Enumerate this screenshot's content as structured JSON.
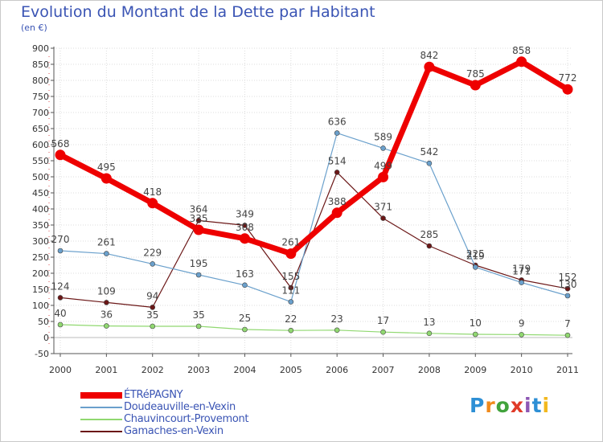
{
  "title": "Evolution du Montant de la Dette par Habitant",
  "subtitle": "(en €)",
  "logo": {
    "text": "Proxiti",
    "letter_colors": [
      "#2d8fd5",
      "#f08a1c",
      "#41a33c",
      "#e03a28",
      "#8d57b4",
      "#2d8fd5",
      "#f2b81e"
    ]
  },
  "chart_data": {
    "type": "line",
    "title": "Evolution du Montant de la Dette par Habitant",
    "subtitle": "(en €)",
    "x": [
      "2000",
      "2001",
      "2002",
      "2003",
      "2004",
      "2005",
      "2006",
      "2007",
      "2008",
      "2009",
      "2010",
      "2011"
    ],
    "ylim": [
      -50,
      900
    ],
    "yticks": [
      -50,
      0,
      50,
      100,
      150,
      200,
      250,
      300,
      350,
      400,
      450,
      500,
      550,
      600,
      650,
      700,
      750,
      800,
      850,
      900
    ],
    "grid": true,
    "legend_position": "bottom-left",
    "series": [
      {
        "name": "Gamaches-en-Vexin",
        "color": "#6b1717",
        "width": 1.2,
        "values": [
          124,
          109,
          94,
          364,
          349,
          155,
          514,
          371,
          285,
          225,
          179,
          152
        ]
      },
      {
        "name": "Chauvincourt-Provemont",
        "color": "#90d870",
        "width": 1.2,
        "values": [
          40,
          36,
          35,
          35,
          25,
          22,
          23,
          17,
          13,
          10,
          9,
          7
        ]
      },
      {
        "name": "Doudeauville-en-Vexin",
        "color": "#6aa0cc",
        "width": 1.2,
        "values": [
          270,
          261,
          229,
          195,
          163,
          111,
          636,
          589,
          542,
          219,
          171,
          130
        ]
      },
      {
        "name": "ÉTRéPAGNY",
        "color": "#ee0000",
        "width": 7,
        "values": [
          568,
          495,
          418,
          335,
          308,
          261,
          388,
          499,
          842,
          785,
          858,
          772
        ]
      }
    ],
    "legend_order": [
      "ÉTRéPAGNY",
      "Doudeauville-en-Vexin",
      "Chauvincourt-Provemont",
      "Gamaches-en-Vexin"
    ]
  }
}
